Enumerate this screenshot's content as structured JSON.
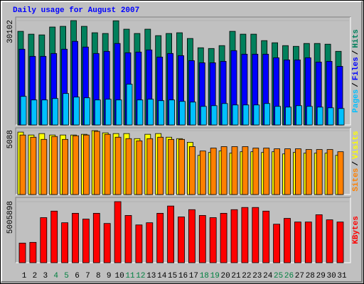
{
  "title": "Daily usage for August 2007",
  "legend_separator": "/",
  "chart_data": [
    {
      "type": "bar",
      "series": [
        {
          "name": "Pages",
          "color": "#00c0ff",
          "values": [
            8248,
            7217,
            7217,
            7629,
            9073,
            8042,
            7836,
            7217,
            7423,
            7217,
            11753,
            7217,
            7423,
            7011,
            7217,
            6805,
            6599,
            5361,
            5567,
            6186,
            5774,
            5774,
            5774,
            6186,
            5361,
            5155,
            5567,
            5361,
            5155,
            4949,
            4743
          ]
        },
        {
          "name": "Files",
          "color": "#0000ff",
          "values": [
            21857,
            19795,
            19795,
            20620,
            21857,
            24125,
            22476,
            20620,
            21239,
            23507,
            20826,
            21032,
            21651,
            19589,
            20620,
            20001,
            18558,
            17939,
            17939,
            18352,
            21445,
            20414,
            20414,
            20414,
            19383,
            18764,
            18764,
            19383,
            18146,
            18352,
            16908
          ]
        },
        {
          "name": "Hits",
          "color": "#00805c",
          "values": [
            27010,
            26190,
            25980,
            28250,
            28450,
            30102,
            28450,
            26600,
            26390,
            30050,
            27630,
            26390,
            27630,
            25770,
            26390,
            26600,
            24950,
            22270,
            22060,
            22890,
            27010,
            26190,
            26190,
            24330,
            23710,
            22890,
            22680,
            23510,
            23510,
            23300,
            21240
          ]
        }
      ],
      "ylim": [
        0,
        30102
      ],
      "yticks": [
        30102
      ]
    },
    {
      "type": "bar",
      "series": [
        {
          "name": "Sites",
          "color": "#ff8000",
          "values": [
            4740,
            4566,
            4393,
            4624,
            4393,
            4682,
            4740,
            5029,
            4797,
            4566,
            4451,
            4277,
            4451,
            4566,
            4393,
            4393,
            3815,
            3468,
            3699,
            3815,
            3815,
            3815,
            3699,
            3699,
            3641,
            3641,
            3641,
            3584,
            3584,
            3584,
            3410
          ]
        },
        {
          "name": "Visits",
          "color": "#ffff00",
          "values": [
            4971,
            4740,
            4855,
            4740,
            4740,
            4740,
            4797,
            5088,
            4913,
            4855,
            4855,
            4451,
            4797,
            4855,
            4566,
            4451,
            4162,
            3121,
            3352,
            3468,
            3295,
            3410,
            3410,
            3352,
            3410,
            3237,
            3352,
            3295,
            3295,
            3295,
            3121
          ]
        }
      ],
      "ylim": [
        0,
        5088
      ],
      "yticks": [
        5088
      ]
    },
    {
      "type": "bar",
      "series": [
        {
          "name": "KBytes",
          "color": "#ff0000",
          "values": [
            1609000,
            1669000,
            3695000,
            4231000,
            3278000,
            4052000,
            3576000,
            4052000,
            3218000,
            5005898,
            3874000,
            3099000,
            3278000,
            4052000,
            4648000,
            3754000,
            4350000,
            3874000,
            3695000,
            4052000,
            4350000,
            4529000,
            4529000,
            4231000,
            3158000,
            3635000,
            3337000,
            3337000,
            3933000,
            3516000,
            3337000
          ]
        }
      ],
      "ylim": [
        0,
        5005898
      ],
      "yticks": [
        5005898
      ],
      "categories": [
        "1",
        "2",
        "3",
        "4",
        "5",
        "6",
        "7",
        "8",
        "9",
        "10",
        "11",
        "12",
        "13",
        "14",
        "15",
        "16",
        "17",
        "18",
        "19",
        "20",
        "21",
        "22",
        "23",
        "24",
        "25",
        "26",
        "27",
        "28",
        "29",
        "30",
        "31"
      ],
      "category_colors": [
        "#000000",
        "#000000",
        "#000000",
        "#008040",
        "#008040",
        "#000000",
        "#000000",
        "#000000",
        "#000000",
        "#000000",
        "#008040",
        "#008040",
        "#000000",
        "#000000",
        "#000000",
        "#000000",
        "#000000",
        "#008040",
        "#008040",
        "#000000",
        "#000000",
        "#000000",
        "#000000",
        "#000000",
        "#008040",
        "#008040",
        "#000000",
        "#000000",
        "#000000",
        "#000000",
        "#000000"
      ]
    }
  ]
}
